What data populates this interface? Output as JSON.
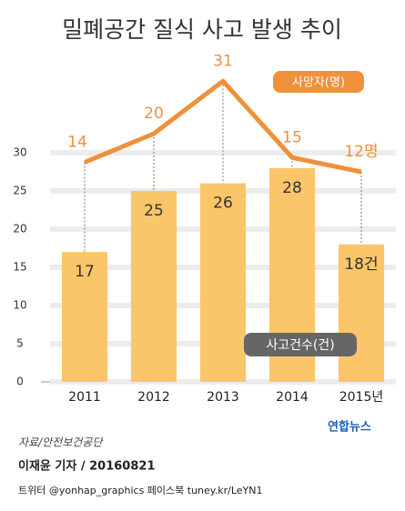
{
  "chart_data": {
    "type": "combo",
    "title": "밀폐공간 질식 사고 발생 추이",
    "categories": [
      "2011",
      "2012",
      "2013",
      "2014",
      "2015년"
    ],
    "series": [
      {
        "name": "사고건수(건)",
        "type": "bar",
        "color": "#fbc56a",
        "values": [
          17,
          25,
          26,
          28,
          18
        ],
        "value_labels": [
          "17",
          "25",
          "26",
          "28",
          "18건"
        ]
      },
      {
        "name": "사망자(명)",
        "type": "line",
        "axis": "y2",
        "color": "#f0903a",
        "values": [
          14,
          20,
          31,
          15,
          12
        ],
        "value_labels": [
          "14",
          "20",
          "31",
          "15",
          "12명"
        ]
      }
    ],
    "ylim": [
      0,
      40
    ],
    "yticks": [
      0,
      5,
      10,
      15,
      20,
      25,
      30
    ],
    "y2lim": [
      -32,
      32
    ],
    "grid": true
  },
  "footer": {
    "source": "자료/안전보건공단",
    "brand": "연합뉴스",
    "reporter": "이재윤 기자 / 20160821",
    "social": "트위터 @yonhap_graphics 페이스북 tuney.kr/LeYN1"
  }
}
